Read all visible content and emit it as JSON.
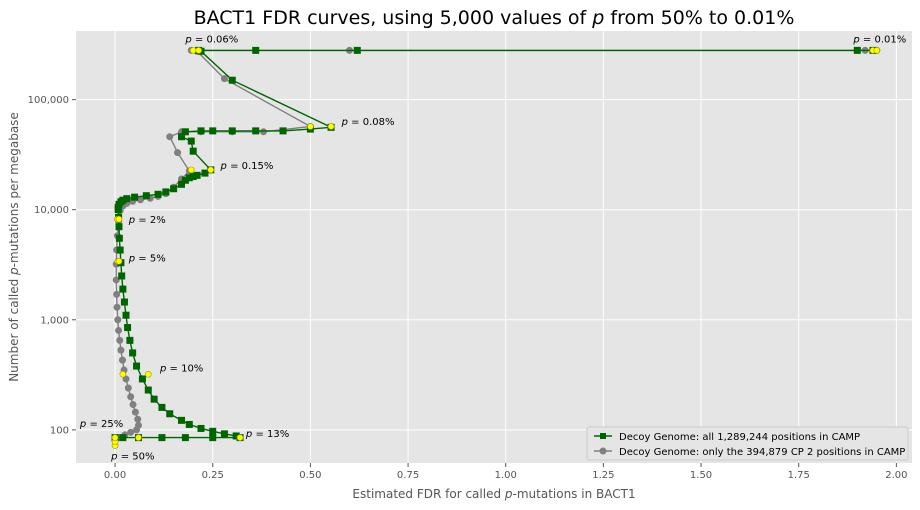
{
  "chart_data": {
    "type": "line",
    "title": "BACT1 FDR curves, using 5,000 values of p from 50% to 0.01%",
    "title_parts": {
      "pre": "BACT1 FDR curves, using 5,000 values of ",
      "var": "p",
      "post": " from 50% to 0.01%"
    },
    "xlabel_parts": {
      "pre": "Estimated FDR for called ",
      "var": "p",
      "post": "-mutations in BACT1"
    },
    "ylabel_parts": {
      "pre": "Number of called ",
      "var": "p",
      "post": "-mutations per megabase"
    },
    "xlim": [
      -0.1,
      2.04
    ],
    "ylim": [
      50,
      420000
    ],
    "y_scale": "log",
    "grid": true,
    "legend_position": "lower-right",
    "x_ticks": [
      0.0,
      0.25,
      0.5,
      0.75,
      1.0,
      1.25,
      1.5,
      1.75,
      2.0
    ],
    "x_tick_labels": [
      "0.00",
      "0.25",
      "0.50",
      "0.75",
      "1.00",
      "1.25",
      "1.50",
      "1.75",
      "2.00"
    ],
    "y_ticks": [
      100,
      1000,
      10000,
      100000
    ],
    "y_tick_labels": [
      "100",
      "1,000",
      "10,000",
      "100,000"
    ],
    "series": [
      {
        "name": "Decoy Genome: all 1,289,244 positions in CAMP",
        "color": "#006400",
        "marker": "square",
        "x": [
          0.0,
          0.02,
          0.06,
          0.12,
          0.18,
          0.25,
          0.32,
          0.31,
          0.28,
          0.25,
          0.22,
          0.19,
          0.17,
          0.14,
          0.12,
          0.1,
          0.085,
          0.07,
          0.055,
          0.045,
          0.038,
          0.032,
          0.028,
          0.024,
          0.02,
          0.017,
          0.015,
          0.013,
          0.011,
          0.01,
          0.009,
          0.008,
          0.008,
          0.01,
          0.015,
          0.02,
          0.03,
          0.05,
          0.08,
          0.11,
          0.13,
          0.15,
          0.17,
          0.18,
          0.19,
          0.2,
          0.21,
          0.23,
          0.245,
          0.2,
          0.195,
          0.17,
          0.18,
          0.22,
          0.25,
          0.3,
          0.36,
          0.43,
          0.5,
          0.553,
          0.3,
          0.22,
          0.214,
          0.36,
          0.62,
          1.9,
          1.94
        ],
        "y": [
          85,
          85,
          85,
          85,
          85,
          85,
          85,
          88,
          92,
          97,
          103,
          112,
          122,
          140,
          160,
          190,
          230,
          290,
          380,
          500,
          650,
          850,
          1100,
          1450,
          1900,
          2500,
          3300,
          4300,
          5500,
          7000,
          8500,
          10000,
          10500,
          11200,
          11800,
          12200,
          12600,
          13000,
          13400,
          13800,
          14500,
          15500,
          17000,
          18500,
          19500,
          20000,
          20500,
          21500,
          23000,
          34000,
          42000,
          46000,
          51000,
          52000,
          52000,
          52000,
          52000,
          52000,
          54000,
          56000,
          150000,
          275000,
          280000,
          280000,
          280000,
          280000,
          280000
        ]
      },
      {
        "name": "Decoy Genome: only the 394,879 CP 2 positions in CAMP",
        "color": "#808080",
        "marker": "circle",
        "x": [
          0.0,
          0.01,
          0.025,
          0.04,
          0.055,
          0.06,
          0.058,
          0.052,
          0.046,
          0.04,
          0.034,
          0.028,
          0.023,
          0.019,
          0.015,
          0.012,
          0.009,
          0.007,
          0.005,
          0.004,
          0.003,
          0.003,
          0.004,
          0.006,
          0.009,
          0.013,
          0.02,
          0.03,
          0.045,
          0.065,
          0.09,
          0.11,
          0.13,
          0.15,
          0.17,
          0.19,
          0.16,
          0.14,
          0.17,
          0.22,
          0.3,
          0.38,
          0.5,
          0.28,
          0.21,
          0.195,
          0.6,
          1.92,
          1.95
        ],
        "y": [
          80,
          85,
          90,
          95,
          100,
          110,
          125,
          145,
          170,
          200,
          240,
          290,
          350,
          430,
          530,
          650,
          800,
          1000,
          1300,
          1700,
          2300,
          3200,
          4300,
          5800,
          7800,
          9800,
          10800,
          11400,
          11900,
          12300,
          12700,
          13200,
          14000,
          16000,
          19000,
          22500,
          33000,
          46000,
          51000,
          51000,
          51000,
          51000,
          57000,
          155000,
          275000,
          280000,
          280000,
          280000,
          280000
        ]
      }
    ],
    "highlight_points": [
      {
        "x": 0.0,
        "y": 72
      },
      {
        "x": 0.0,
        "y": 78
      },
      {
        "x": 0.0,
        "y": 85
      },
      {
        "x": 0.06,
        "y": 85
      },
      {
        "x": 0.32,
        "y": 85
      },
      {
        "x": 0.02,
        "y": 320
      },
      {
        "x": 0.085,
        "y": 320
      },
      {
        "x": 0.007,
        "y": 3400
      },
      {
        "x": 0.01,
        "y": 3400
      },
      {
        "x": 0.006,
        "y": 8200
      },
      {
        "x": 0.01,
        "y": 8200
      },
      {
        "x": 0.245,
        "y": 23000
      },
      {
        "x": 0.195,
        "y": 23000
      },
      {
        "x": 0.553,
        "y": 57000
      },
      {
        "x": 0.5,
        "y": 57000
      },
      {
        "x": 0.2,
        "y": 280000
      },
      {
        "x": 0.214,
        "y": 280000
      },
      {
        "x": 1.94,
        "y": 280000
      },
      {
        "x": 1.95,
        "y": 280000
      }
    ],
    "annotations": [
      {
        "value": "0.06%",
        "x": 0.18,
        "y": 330000
      },
      {
        "value": "0.01%",
        "x": 1.89,
        "y": 330000
      },
      {
        "value": "0.08%",
        "x": 0.58,
        "y": 59000
      },
      {
        "value": "0.15%",
        "x": 0.27,
        "y": 23500
      },
      {
        "value": "2%",
        "x": 0.035,
        "y": 7600
      },
      {
        "value": "5%",
        "x": 0.035,
        "y": 3400
      },
      {
        "value": "10%",
        "x": 0.115,
        "y": 340
      },
      {
        "value": "25%",
        "x": -0.09,
        "y": 106
      },
      {
        "value": "13%",
        "x": 0.335,
        "y": 86
      },
      {
        "value": "50%",
        "x": -0.01,
        "y": 54
      }
    ]
  }
}
